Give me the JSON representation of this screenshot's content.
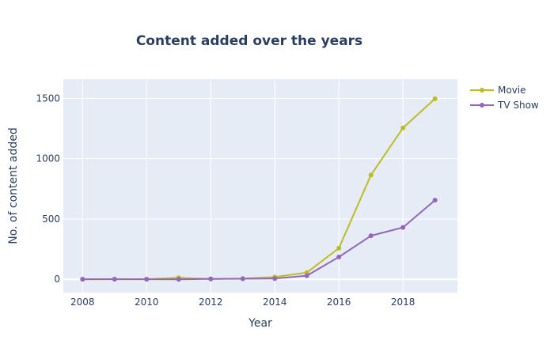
{
  "chart_data": {
    "type": "line",
    "title": "Content added over the years",
    "xlabel": "Year",
    "ylabel": "No. of content added",
    "x": [
      2008,
      2009,
      2010,
      2011,
      2012,
      2013,
      2014,
      2015,
      2016,
      2017,
      2018,
      2019
    ],
    "xlim": [
      2007.4,
      2019.7
    ],
    "ylim": [
      -110,
      1660
    ],
    "x_ticks": [
      2008,
      2010,
      2012,
      2014,
      2016,
      2018
    ],
    "y_ticks": [
      0,
      500,
      1000,
      1500
    ],
    "grid": true,
    "legend_position": "top-right",
    "series": [
      {
        "name": "Movie",
        "color": "#bcbd22",
        "values": [
          1,
          2,
          1,
          13,
          3,
          6,
          19,
          56,
          258,
          864,
          1255,
          1497
        ]
      },
      {
        "name": "TV Show",
        "color": "#9467bd",
        "values": [
          1,
          1,
          1,
          0,
          3,
          5,
          6,
          30,
          185,
          361,
          430,
          656
        ]
      }
    ]
  },
  "colors": {
    "plot_background": "#e5ecf6",
    "grid": "#ffffff",
    "text": "#2a3f5f"
  }
}
